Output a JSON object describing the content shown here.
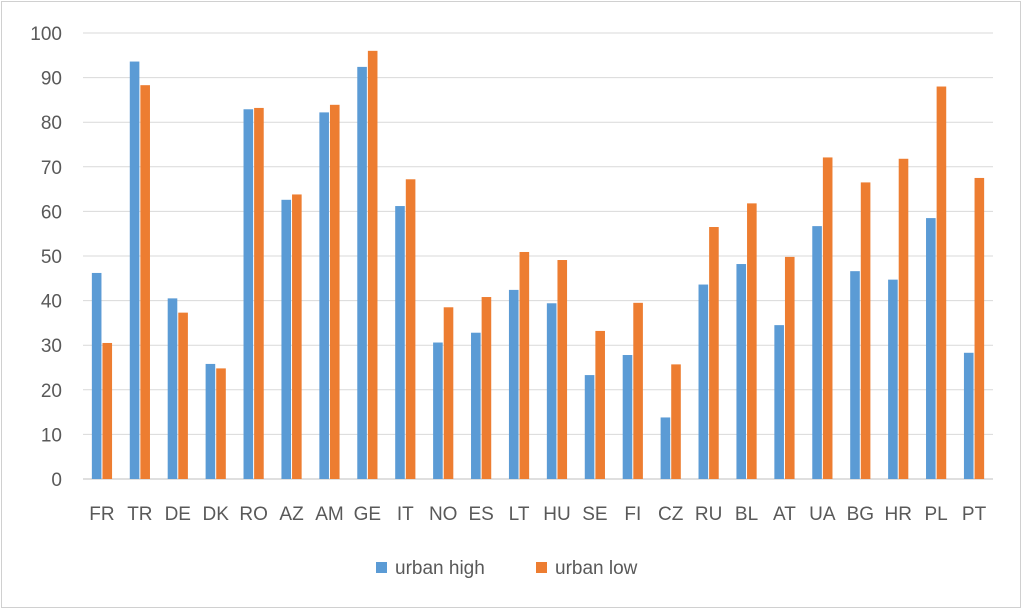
{
  "chart_data": {
    "type": "bar",
    "title": "",
    "xlabel": "",
    "ylabel": "",
    "ylim": [
      0,
      100
    ],
    "y_ticks": [
      0,
      10,
      20,
      30,
      40,
      50,
      60,
      70,
      80,
      90,
      100
    ],
    "grid": true,
    "legend_position": "bottom",
    "categories": [
      "FR",
      "TR",
      "DE",
      "DK",
      "RO",
      "AZ",
      "AM",
      "GE",
      "IT",
      "NO",
      "ES",
      "LT",
      "HU",
      "SE",
      "FI",
      "CZ",
      "RU",
      "BL",
      "AT",
      "UA",
      "BG",
      "HR",
      "PL",
      "PT"
    ],
    "series": [
      {
        "name": "urban high",
        "color": "#5b9bd5",
        "values": [
          46.2,
          93.6,
          40.5,
          25.8,
          82.9,
          62.6,
          82.2,
          92.4,
          61.2,
          30.6,
          32.8,
          42.4,
          39.4,
          23.3,
          27.8,
          13.8,
          43.6,
          48.2,
          34.5,
          56.7,
          46.6,
          44.7,
          58.5,
          28.3
        ]
      },
      {
        "name": "urban low",
        "color": "#ed7d31",
        "values": [
          30.5,
          88.3,
          37.3,
          24.8,
          83.2,
          63.8,
          83.9,
          96.0,
          67.2,
          38.5,
          40.8,
          50.9,
          49.1,
          33.2,
          39.5,
          25.7,
          56.5,
          61.8,
          49.8,
          72.1,
          66.5,
          71.8,
          88.0,
          67.5
        ]
      }
    ]
  }
}
